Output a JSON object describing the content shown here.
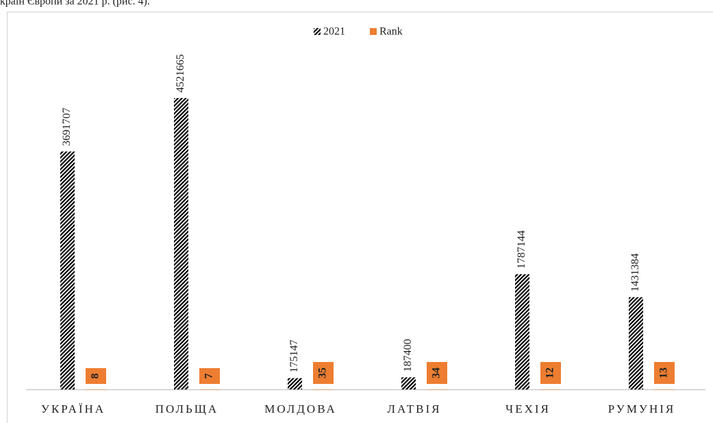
{
  "caption": "країн Європи за 2021 р. (рис. 4).",
  "chart_data": {
    "type": "bar",
    "categories": [
      "УКРАЇНА",
      "ПОЛЬЩА",
      "МОЛДОВА",
      "ЛАТВІЯ",
      "ЧЕХІЯ",
      "РУМУНІЯ"
    ],
    "series": [
      {
        "name": "2021",
        "color": "#000000",
        "values": [
          3691707,
          4521665,
          175147,
          187400,
          1787144,
          1431384
        ]
      },
      {
        "name": "Rank",
        "color": "#ed7d31",
        "values": [
          8,
          7,
          35,
          34,
          12,
          13
        ]
      }
    ],
    "ylim": [
      0,
      5000000
    ],
    "legend": "top"
  }
}
